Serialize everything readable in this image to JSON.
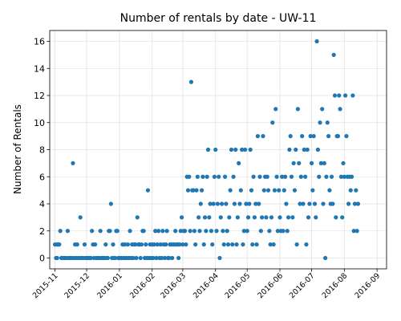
{
  "chart_data": {
    "type": "scatter",
    "title": "Number of rentals by date - UW-11",
    "xlabel": "",
    "ylabel": "Number of Rentals",
    "xlim": [
      "2015-10-27",
      "2016-09-10"
    ],
    "ylim": [
      -0.8,
      16.8
    ],
    "yticks": [
      0,
      2,
      4,
      6,
      8,
      10,
      12,
      14,
      16
    ],
    "xticks": [
      "2015-11",
      "2015-12",
      "2016-01",
      "2016-02",
      "2016-03",
      "2016-04",
      "2016-05",
      "2016-06",
      "2016-07",
      "2016-08",
      "2016-09"
    ],
    "grid": true,
    "marker_color": "#1f77b4",
    "points": [
      [
        "2015-11-01",
        1
      ],
      [
        "2015-11-02",
        0
      ],
      [
        "2015-11-03",
        0
      ],
      [
        "2015-11-03",
        1
      ],
      [
        "2015-11-04",
        1
      ],
      [
        "2015-11-05",
        1
      ],
      [
        "2015-11-06",
        2
      ],
      [
        "2015-11-07",
        0
      ],
      [
        "2015-11-08",
        0
      ],
      [
        "2015-11-09",
        0
      ],
      [
        "2015-11-10",
        0
      ],
      [
        "2015-11-11",
        0
      ],
      [
        "2015-11-12",
        0
      ],
      [
        "2015-11-13",
        2
      ],
      [
        "2015-11-14",
        0
      ],
      [
        "2015-11-15",
        0
      ],
      [
        "2015-11-16",
        0
      ],
      [
        "2015-11-17",
        0
      ],
      [
        "2015-11-18",
        7
      ],
      [
        "2015-11-19",
        0
      ],
      [
        "2015-11-20",
        1
      ],
      [
        "2015-11-21",
        0
      ],
      [
        "2015-11-22",
        1
      ],
      [
        "2015-11-23",
        0
      ],
      [
        "2015-11-24",
        0
      ],
      [
        "2015-11-25",
        3
      ],
      [
        "2015-11-26",
        0
      ],
      [
        "2015-11-27",
        0
      ],
      [
        "2015-11-28",
        0
      ],
      [
        "2015-11-29",
        1
      ],
      [
        "2015-11-30",
        0
      ],
      [
        "2015-12-01",
        0
      ],
      [
        "2015-12-02",
        0
      ],
      [
        "2015-12-03",
        0
      ],
      [
        "2015-12-04",
        0
      ],
      [
        "2015-12-05",
        0
      ],
      [
        "2015-12-06",
        2
      ],
      [
        "2015-12-07",
        1
      ],
      [
        "2015-12-08",
        0
      ],
      [
        "2015-12-09",
        1
      ],
      [
        "2015-12-10",
        0
      ],
      [
        "2015-12-11",
        0
      ],
      [
        "2015-12-12",
        0
      ],
      [
        "2015-12-13",
        0
      ],
      [
        "2015-12-14",
        2
      ],
      [
        "2015-12-15",
        0
      ],
      [
        "2015-12-16",
        0
      ],
      [
        "2015-12-17",
        0
      ],
      [
        "2015-12-18",
        0
      ],
      [
        "2015-12-19",
        1
      ],
      [
        "2015-12-20",
        0
      ],
      [
        "2015-12-21",
        0
      ],
      [
        "2015-12-22",
        2
      ],
      [
        "2015-12-23",
        2
      ],
      [
        "2015-12-24",
        4
      ],
      [
        "2015-12-25",
        0
      ],
      [
        "2015-12-26",
        1
      ],
      [
        "2015-12-27",
        0
      ],
      [
        "2015-12-28",
        0
      ],
      [
        "2015-12-29",
        2
      ],
      [
        "2015-12-30",
        2
      ],
      [
        "2015-12-31",
        0
      ],
      [
        "2016-01-01",
        0
      ],
      [
        "2016-01-02",
        0
      ],
      [
        "2016-01-03",
        0
      ],
      [
        "2016-01-04",
        1
      ],
      [
        "2016-01-05",
        0
      ],
      [
        "2016-01-06",
        1
      ],
      [
        "2016-01-07",
        0
      ],
      [
        "2016-01-08",
        0
      ],
      [
        "2016-01-09",
        1
      ],
      [
        "2016-01-10",
        0
      ],
      [
        "2016-01-11",
        2
      ],
      [
        "2016-01-12",
        0
      ],
      [
        "2016-01-13",
        1
      ],
      [
        "2016-01-14",
        0
      ],
      [
        "2016-01-15",
        1
      ],
      [
        "2016-01-16",
        1
      ],
      [
        "2016-01-17",
        0
      ],
      [
        "2016-01-18",
        3
      ],
      [
        "2016-01-19",
        1
      ],
      [
        "2016-01-20",
        1
      ],
      [
        "2016-01-21",
        0
      ],
      [
        "2016-01-22",
        1
      ],
      [
        "2016-01-23",
        2
      ],
      [
        "2016-01-24",
        2
      ],
      [
        "2016-01-25",
        0
      ],
      [
        "2016-01-26",
        1
      ],
      [
        "2016-01-27",
        0
      ],
      [
        "2016-01-28",
        5
      ],
      [
        "2016-01-29",
        0
      ],
      [
        "2016-01-30",
        1
      ],
      [
        "2016-01-31",
        0
      ],
      [
        "2016-02-01",
        1
      ],
      [
        "2016-02-02",
        0
      ],
      [
        "2016-02-03",
        1
      ],
      [
        "2016-02-04",
        2
      ],
      [
        "2016-02-05",
        0
      ],
      [
        "2016-02-06",
        1
      ],
      [
        "2016-02-07",
        2
      ],
      [
        "2016-02-08",
        0
      ],
      [
        "2016-02-09",
        1
      ],
      [
        "2016-02-10",
        0
      ],
      [
        "2016-02-11",
        2
      ],
      [
        "2016-02-12",
        1
      ],
      [
        "2016-02-13",
        0
      ],
      [
        "2016-02-14",
        1
      ],
      [
        "2016-02-15",
        2
      ],
      [
        "2016-02-16",
        0
      ],
      [
        "2016-02-17",
        0
      ],
      [
        "2016-02-18",
        1
      ],
      [
        "2016-02-19",
        1
      ],
      [
        "2016-02-20",
        0
      ],
      [
        "2016-02-21",
        1
      ],
      [
        "2016-02-22",
        1
      ],
      [
        "2016-02-23",
        2
      ],
      [
        "2016-02-24",
        1
      ],
      [
        "2016-02-25",
        1
      ],
      [
        "2016-02-26",
        0
      ],
      [
        "2016-02-27",
        1
      ],
      [
        "2016-02-28",
        2
      ],
      [
        "2016-02-29",
        3
      ],
      [
        "2016-03-01",
        1
      ],
      [
        "2016-03-02",
        2
      ],
      [
        "2016-03-03",
        2
      ],
      [
        "2016-03-04",
        1
      ],
      [
        "2016-03-05",
        6
      ],
      [
        "2016-03-06",
        5
      ],
      [
        "2016-03-07",
        6
      ],
      [
        "2016-03-08",
        2
      ],
      [
        "2016-03-09",
        13
      ],
      [
        "2016-03-10",
        5
      ],
      [
        "2016-03-11",
        5
      ],
      [
        "2016-03-12",
        2
      ],
      [
        "2016-03-13",
        1
      ],
      [
        "2016-03-14",
        5
      ],
      [
        "2016-03-15",
        6
      ],
      [
        "2016-03-16",
        3
      ],
      [
        "2016-03-17",
        2
      ],
      [
        "2016-03-18",
        4
      ],
      [
        "2016-03-19",
        5
      ],
      [
        "2016-03-20",
        6
      ],
      [
        "2016-03-21",
        1
      ],
      [
        "2016-03-22",
        3
      ],
      [
        "2016-03-23",
        2
      ],
      [
        "2016-03-24",
        6
      ],
      [
        "2016-03-25",
        8
      ],
      [
        "2016-03-26",
        3
      ],
      [
        "2016-03-27",
        4
      ],
      [
        "2016-03-28",
        2
      ],
      [
        "2016-03-29",
        1
      ],
      [
        "2016-03-30",
        4
      ],
      [
        "2016-03-31",
        6
      ],
      [
        "2016-04-01",
        8
      ],
      [
        "2016-04-02",
        2
      ],
      [
        "2016-04-03",
        4
      ],
      [
        "2016-04-04",
        6
      ],
      [
        "2016-04-05",
        0
      ],
      [
        "2016-04-06",
        3
      ],
      [
        "2016-04-07",
        4
      ],
      [
        "2016-04-08",
        2
      ],
      [
        "2016-04-09",
        1
      ],
      [
        "2016-04-10",
        6
      ],
      [
        "2016-04-11",
        4
      ],
      [
        "2016-04-12",
        2
      ],
      [
        "2016-04-13",
        1
      ],
      [
        "2016-04-14",
        3
      ],
      [
        "2016-04-15",
        5
      ],
      [
        "2016-04-16",
        8
      ],
      [
        "2016-04-17",
        1
      ],
      [
        "2016-04-18",
        6
      ],
      [
        "2016-04-19",
        4
      ],
      [
        "2016-04-20",
        8
      ],
      [
        "2016-04-21",
        1
      ],
      [
        "2016-04-22",
        3
      ],
      [
        "2016-04-23",
        7
      ],
      [
        "2016-04-24",
        4
      ],
      [
        "2016-04-25",
        5
      ],
      [
        "2016-04-26",
        8
      ],
      [
        "2016-04-27",
        1
      ],
      [
        "2016-04-28",
        2
      ],
      [
        "2016-04-29",
        8
      ],
      [
        "2016-04-30",
        4
      ],
      [
        "2016-05-01",
        2
      ],
      [
        "2016-05-02",
        3
      ],
      [
        "2016-05-03",
        4
      ],
      [
        "2016-05-04",
        8
      ],
      [
        "2016-05-05",
        5
      ],
      [
        "2016-05-06",
        1
      ],
      [
        "2016-05-07",
        6
      ],
      [
        "2016-05-08",
        3
      ],
      [
        "2016-05-09",
        4
      ],
      [
        "2016-05-10",
        1
      ],
      [
        "2016-05-11",
        9
      ],
      [
        "2016-05-12",
        4
      ],
      [
        "2016-05-13",
        6
      ],
      [
        "2016-05-14",
        2
      ],
      [
        "2016-05-15",
        3
      ],
      [
        "2016-05-16",
        9
      ],
      [
        "2016-05-17",
        5
      ],
      [
        "2016-05-18",
        6
      ],
      [
        "2016-05-19",
        3
      ],
      [
        "2016-05-20",
        6
      ],
      [
        "2016-05-21",
        5
      ],
      [
        "2016-05-22",
        2
      ],
      [
        "2016-05-23",
        1
      ],
      [
        "2016-05-24",
        3
      ],
      [
        "2016-05-25",
        10
      ],
      [
        "2016-05-26",
        1
      ],
      [
        "2016-05-27",
        5
      ],
      [
        "2016-05-28",
        11
      ],
      [
        "2016-05-29",
        6
      ],
      [
        "2016-05-30",
        2
      ],
      [
        "2016-05-31",
        5
      ],
      [
        "2016-06-01",
        3
      ],
      [
        "2016-06-02",
        2
      ],
      [
        "2016-06-03",
        6
      ],
      [
        "2016-06-04",
        2
      ],
      [
        "2016-06-05",
        5
      ],
      [
        "2016-06-06",
        6
      ],
      [
        "2016-06-07",
        4
      ],
      [
        "2016-06-08",
        2
      ],
      [
        "2016-06-09",
        3
      ],
      [
        "2016-06-10",
        8
      ],
      [
        "2016-06-11",
        9
      ],
      [
        "2016-06-12",
        6
      ],
      [
        "2016-06-13",
        3
      ],
      [
        "2016-06-14",
        7
      ],
      [
        "2016-06-15",
        5
      ],
      [
        "2016-06-16",
        8
      ],
      [
        "2016-06-17",
        1
      ],
      [
        "2016-06-18",
        11
      ],
      [
        "2016-06-19",
        7
      ],
      [
        "2016-06-20",
        4
      ],
      [
        "2016-06-21",
        6
      ],
      [
        "2016-06-22",
        9
      ],
      [
        "2016-06-23",
        4
      ],
      [
        "2016-06-24",
        8
      ],
      [
        "2016-06-25",
        6
      ],
      [
        "2016-06-26",
        1
      ],
      [
        "2016-06-27",
        8
      ],
      [
        "2016-06-28",
        3
      ],
      [
        "2016-06-29",
        4
      ],
      [
        "2016-06-30",
        9
      ],
      [
        "2016-07-01",
        7
      ],
      [
        "2016-07-02",
        5
      ],
      [
        "2016-07-03",
        9
      ],
      [
        "2016-07-04",
        4
      ],
      [
        "2016-07-05",
        3
      ],
      [
        "2016-07-06",
        16
      ],
      [
        "2016-07-07",
        8
      ],
      [
        "2016-07-08",
        6
      ],
      [
        "2016-07-09",
        10
      ],
      [
        "2016-07-10",
        7
      ],
      [
        "2016-07-11",
        11
      ],
      [
        "2016-07-12",
        4
      ],
      [
        "2016-07-13",
        7
      ],
      [
        "2016-07-14",
        0
      ],
      [
        "2016-07-15",
        6
      ],
      [
        "2016-07-16",
        10
      ],
      [
        "2016-07-17",
        9
      ],
      [
        "2016-07-18",
        5
      ],
      [
        "2016-07-19",
        4
      ],
      [
        "2016-07-20",
        6
      ],
      [
        "2016-07-21",
        4
      ],
      [
        "2016-07-22",
        15
      ],
      [
        "2016-07-23",
        12
      ],
      [
        "2016-07-24",
        3
      ],
      [
        "2016-07-25",
        9
      ],
      [
        "2016-07-26",
        9
      ],
      [
        "2016-07-27",
        12
      ],
      [
        "2016-07-28",
        11
      ],
      [
        "2016-07-29",
        6
      ],
      [
        "2016-07-30",
        3
      ],
      [
        "2016-07-31",
        7
      ],
      [
        "2016-08-01",
        6
      ],
      [
        "2016-08-02",
        12
      ],
      [
        "2016-08-03",
        9
      ],
      [
        "2016-08-04",
        6
      ],
      [
        "2016-08-05",
        4
      ],
      [
        "2016-08-06",
        6
      ],
      [
        "2016-08-07",
        5
      ],
      [
        "2016-08-08",
        6
      ],
      [
        "2016-08-09",
        12
      ],
      [
        "2016-08-10",
        2
      ],
      [
        "2016-08-11",
        4
      ],
      [
        "2016-08-12",
        5
      ],
      [
        "2016-08-13",
        2
      ],
      [
        "2016-08-14",
        4
      ]
    ]
  }
}
